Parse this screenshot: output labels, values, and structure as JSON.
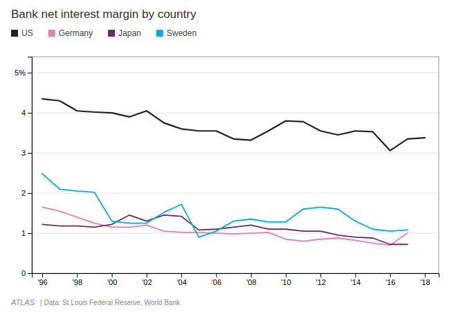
{
  "chart_data": {
    "type": "line",
    "title": "Bank net interest margin by country",
    "x": [
      1996,
      1997,
      1998,
      1999,
      2000,
      2001,
      2002,
      2003,
      2004,
      2005,
      2006,
      2007,
      2008,
      2009,
      2010,
      2011,
      2012,
      2013,
      2014,
      2015,
      2016,
      2017,
      2018
    ],
    "series": [
      {
        "name": "US",
        "color": "#222222",
        "values": [
          4.35,
          4.3,
          4.05,
          4.02,
          4.0,
          3.9,
          4.05,
          3.75,
          3.6,
          3.55,
          3.55,
          3.35,
          3.32,
          3.55,
          3.8,
          3.78,
          3.55,
          3.45,
          3.55,
          3.53,
          3.06,
          3.35,
          3.38
        ]
      },
      {
        "name": "Germany",
        "color": "#e87db0",
        "values": [
          1.65,
          1.55,
          1.4,
          1.25,
          1.15,
          1.15,
          1.2,
          1.05,
          1.02,
          1.02,
          1.0,
          0.98,
          1.0,
          1.02,
          0.85,
          0.8,
          0.85,
          0.88,
          0.82,
          0.75,
          0.7,
          1.0,
          null
        ]
      },
      {
        "name": "Japan",
        "color": "#6b2d5e",
        "values": [
          1.22,
          1.18,
          1.18,
          1.15,
          1.22,
          1.45,
          1.3,
          1.45,
          1.42,
          1.08,
          1.1,
          1.15,
          1.2,
          1.1,
          1.1,
          1.05,
          1.05,
          0.95,
          0.9,
          0.88,
          0.72,
          0.72,
          null
        ]
      },
      {
        "name": "Sweden",
        "color": "#00aaee",
        "values": [
          2.48,
          2.1,
          2.05,
          2.02,
          1.3,
          1.25,
          1.25,
          1.52,
          1.72,
          0.9,
          1.05,
          1.3,
          1.35,
          1.28,
          1.28,
          1.6,
          1.65,
          1.6,
          1.3,
          1.1,
          1.05,
          1.08,
          null
        ]
      }
    ],
    "xlim": [
      1995.4,
      2018.8
    ],
    "xticks": [
      {
        "value": 1996,
        "label": "'96"
      },
      {
        "value": 1998,
        "label": "'98"
      },
      {
        "value": 2000,
        "label": "'00"
      },
      {
        "value": 2002,
        "label": "'02"
      },
      {
        "value": 2004,
        "label": "'04"
      },
      {
        "value": 2006,
        "label": "'06"
      },
      {
        "value": 2008,
        "label": "'08"
      },
      {
        "value": 2010,
        "label": "'10"
      },
      {
        "value": 2012,
        "label": "'12"
      },
      {
        "value": 2014,
        "label": "'14"
      },
      {
        "value": 2016,
        "label": "'16"
      },
      {
        "value": 2018,
        "label": "'18"
      }
    ],
    "ylim": [
      0,
      5.4
    ],
    "yticks": [
      0,
      1,
      2,
      3,
      4,
      {
        "value": 5,
        "label": "5%"
      }
    ],
    "grid": true,
    "legend": "top",
    "annotations": [
      "ATLAS",
      "| Data: St Louis Federal Reserve, World Bank"
    ]
  }
}
